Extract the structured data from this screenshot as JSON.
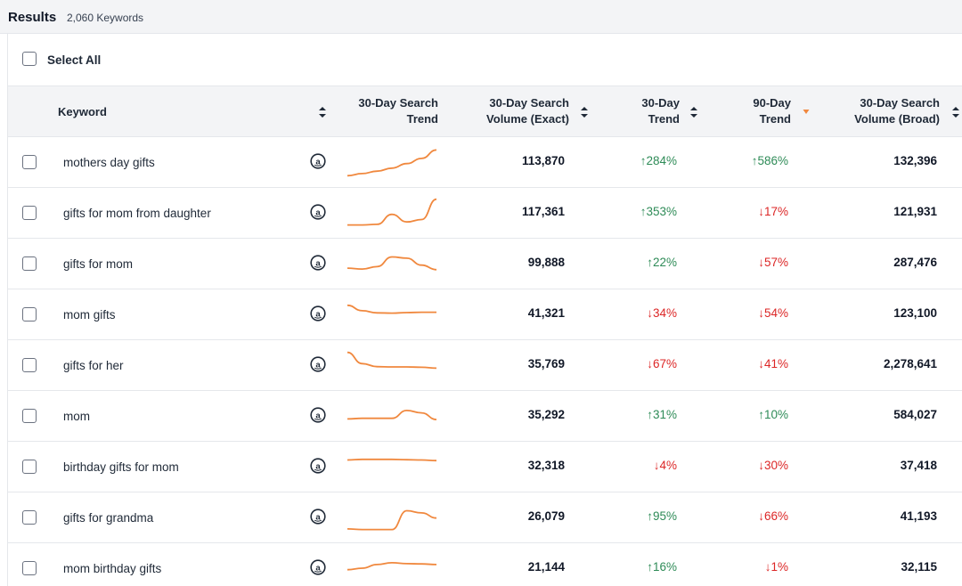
{
  "results": {
    "title": "Results",
    "count": "2,060 Keywords"
  },
  "select_all": {
    "label": "Select All"
  },
  "columns": {
    "keyword": "Keyword",
    "search_trend_1": "30-Day Search",
    "search_trend_2": "Trend",
    "volume_exact_1": "30-Day Search",
    "volume_exact_2": "Volume (Exact)",
    "trend30_1": "30-Day",
    "trend30_2": "Trend",
    "trend90_1": "90-Day",
    "trend90_2": "Trend",
    "volume_broad_1": "30-Day Search",
    "volume_broad_2": "Volume (Broad)"
  },
  "colors": {
    "up": "#2e8b57",
    "down": "#dc2626",
    "sparkline": "#f0883e",
    "sort_active": "#f0883e"
  },
  "rows": [
    {
      "keyword": "mothers day gifts",
      "volume_exact": "113,870",
      "trend30": "↑284%",
      "trend30_dir": "up",
      "trend90": "↑586%",
      "trend90_dir": "up",
      "volume_broad": "132,396",
      "sparkline": [
        0.05,
        0.12,
        0.2,
        0.3,
        0.45,
        0.62,
        0.9
      ]
    },
    {
      "keyword": "gifts for mom from daughter",
      "volume_exact": "117,361",
      "trend30": "↑353%",
      "trend30_dir": "up",
      "trend90": "↓17%",
      "trend90_dir": "down",
      "volume_broad": "121,931",
      "sparkline": [
        0.1,
        0.1,
        0.12,
        0.45,
        0.2,
        0.28,
        0.95
      ]
    },
    {
      "keyword": "gifts for mom",
      "volume_exact": "99,888",
      "trend30": "↑22%",
      "trend30_dir": "up",
      "trend90": "↓57%",
      "trend90_dir": "down",
      "volume_broad": "287,476",
      "sparkline": [
        0.35,
        0.32,
        0.4,
        0.72,
        0.68,
        0.45,
        0.3
      ]
    },
    {
      "keyword": "mom gifts",
      "volume_exact": "41,321",
      "trend30": "↓34%",
      "trend30_dir": "down",
      "trend90": "↓54%",
      "trend90_dir": "down",
      "volume_broad": "123,100",
      "sparkline": [
        0.8,
        0.62,
        0.55,
        0.54,
        0.56,
        0.57,
        0.57
      ]
    },
    {
      "keyword": "gifts for her",
      "volume_exact": "35,769",
      "trend30": "↓67%",
      "trend30_dir": "down",
      "trend90": "↓41%",
      "trend90_dir": "down",
      "volume_broad": "2,278,641",
      "sparkline": [
        0.92,
        0.55,
        0.45,
        0.44,
        0.44,
        0.43,
        0.4
      ]
    },
    {
      "keyword": "mom",
      "volume_exact": "35,292",
      "trend30": "↑31%",
      "trend30_dir": "up",
      "trend90": "↑10%",
      "trend90_dir": "up",
      "volume_broad": "584,027",
      "sparkline": [
        0.4,
        0.42,
        0.42,
        0.42,
        0.68,
        0.6,
        0.38
      ]
    },
    {
      "keyword": "birthday gifts for mom",
      "volume_exact": "32,318",
      "trend30": "↓4%",
      "trend30_dir": "down",
      "trend90": "↓30%",
      "trend90_dir": "down",
      "volume_broad": "37,418",
      "sparkline": [
        0.72,
        0.74,
        0.74,
        0.74,
        0.73,
        0.72,
        0.7
      ]
    },
    {
      "keyword": "gifts for grandma",
      "volume_exact": "26,079",
      "trend30": "↑95%",
      "trend30_dir": "up",
      "trend90": "↓66%",
      "trend90_dir": "down",
      "volume_broad": "41,193",
      "sparkline": [
        0.12,
        0.1,
        0.1,
        0.1,
        0.72,
        0.65,
        0.48
      ]
    },
    {
      "keyword": "mom birthday gifts",
      "volume_exact": "21,144",
      "trend30": "↑16%",
      "trend30_dir": "up",
      "trend90": "↓1%",
      "trend90_dir": "down",
      "volume_broad": "32,115",
      "sparkline": [
        0.45,
        0.5,
        0.62,
        0.68,
        0.65,
        0.64,
        0.62
      ]
    }
  ]
}
